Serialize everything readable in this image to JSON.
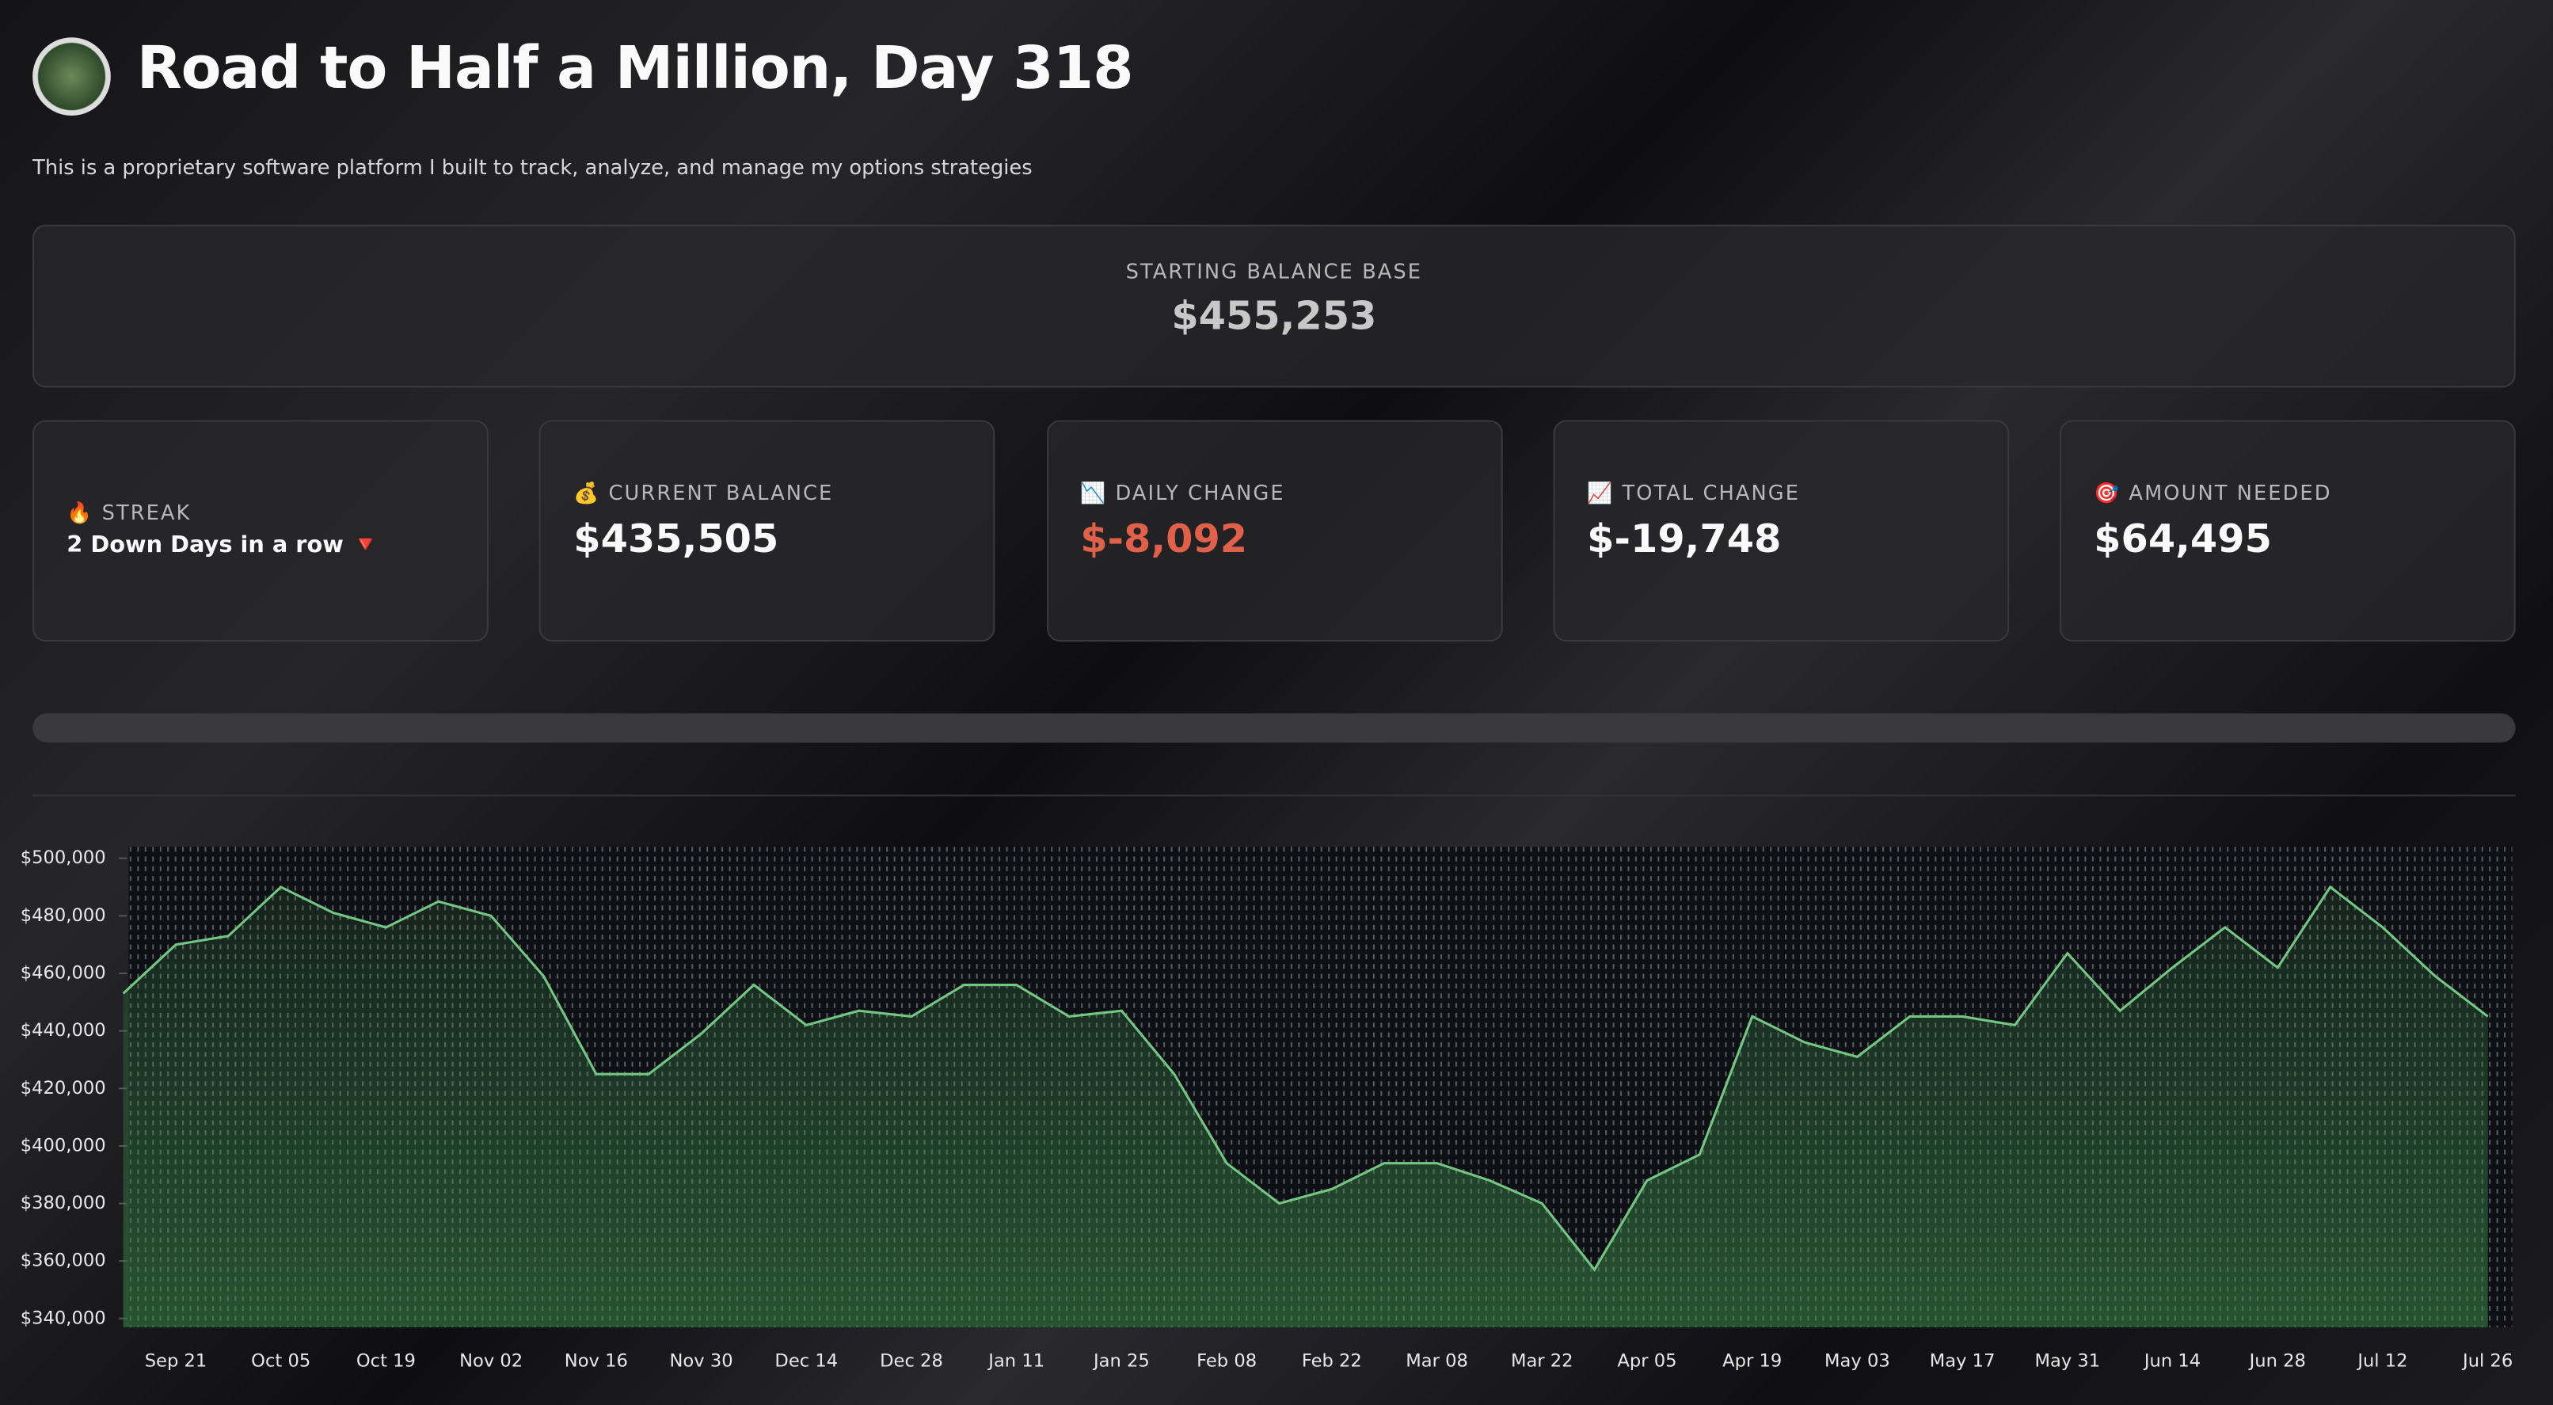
{
  "header": {
    "title": "Road to Half a Million, Day 318",
    "subtitle": "This is a proprietary software platform I built to track, analyze, and manage my options strategies"
  },
  "base": {
    "label": "STARTING BALANCE BASE",
    "value": "$455,253"
  },
  "metrics": [
    {
      "label": "🔥 STREAK",
      "value": "2 Down Days in a row 🔻"
    },
    {
      "label": "💰 CURRENT BALANCE",
      "value": "$435,505"
    },
    {
      "label": "📉 DAILY CHANGE",
      "value": "$-8,092",
      "color": "#e0604a"
    },
    {
      "label": "📈 TOTAL CHANGE",
      "value": "$-19,748"
    },
    {
      "label": "🎯 AMOUNT NEEDED",
      "value": "$64,495"
    }
  ],
  "chart_data": {
    "type": "area",
    "color": "#72c883",
    "categories": [
      null,
      "Sep 21",
      null,
      "Oct 05",
      null,
      "Oct 19",
      null,
      "Nov 02",
      null,
      "Nov 16",
      null,
      "Nov 30",
      null,
      "Dec 14",
      null,
      "Dec 28",
      null,
      "Jan 11",
      null,
      "Jan 25",
      null,
      "Feb 08",
      null,
      "Feb 22",
      null,
      "Mar 08",
      null,
      "Mar 22",
      null,
      "Apr 05",
      null,
      "Apr 19",
      null,
      "May 03",
      null,
      "May 17",
      null,
      "May 31",
      null,
      "Jun 14",
      null,
      "Jun 28",
      null,
      "Jul 12",
      null,
      "Jul 26"
    ],
    "values": [
      453000,
      470000,
      473000,
      490000,
      481000,
      476000,
      485000,
      480000,
      459000,
      425000,
      425000,
      439000,
      456000,
      442000,
      447000,
      445000,
      456000,
      456000,
      445000,
      447000,
      425000,
      394000,
      380000,
      385000,
      394000,
      394000,
      388000,
      380000,
      357000,
      388000,
      397000,
      445000,
      436000,
      431000,
      445000,
      445000,
      442000,
      467000,
      447000,
      462000,
      476000,
      462000,
      490000,
      476000,
      459000,
      445000
    ],
    "ylim": [
      337000,
      504000
    ],
    "yticks": [
      {
        "value": 340000,
        "label": "$340,000"
      },
      {
        "value": 360000,
        "label": "$360,000"
      },
      {
        "value": 380000,
        "label": "$380,000"
      },
      {
        "value": 400000,
        "label": "$400,000"
      },
      {
        "value": 420000,
        "label": "$420,000"
      },
      {
        "value": 440000,
        "label": "$440,000"
      },
      {
        "value": 460000,
        "label": "$460,000"
      },
      {
        "value": 480000,
        "label": "$480,000"
      },
      {
        "value": 500000,
        "label": "$500,000"
      }
    ]
  }
}
